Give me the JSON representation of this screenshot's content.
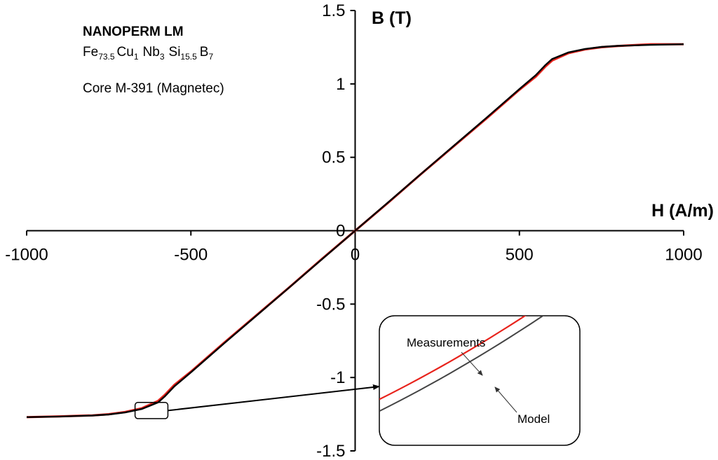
{
  "chart_data": {
    "type": "line",
    "xlabel": "H (A/m)",
    "ylabel": "B (T)",
    "xlim": [
      -1000,
      1000
    ],
    "ylim": [
      -1.5,
      1.5
    ],
    "x_ticks": [
      -1000,
      -500,
      0,
      500,
      1000
    ],
    "y_ticks": [
      -1.5,
      -1,
      -0.5,
      0,
      0.5,
      1,
      1.5
    ],
    "x_tick_labels": [
      "-1000",
      "-500",
      "0",
      "500",
      "1000"
    ],
    "y_tick_labels": [
      "-1.5",
      "-1",
      "-0.5",
      "0",
      "0.5",
      "1",
      "1.5"
    ],
    "grid": false,
    "series": [
      {
        "name": "Measurements",
        "color": "#e8231c",
        "x": [
          -1000,
          -900,
          -800,
          -750,
          -700,
          -650,
          -600,
          -580,
          -550,
          -500,
          -400,
          -300,
          -200,
          -100,
          0,
          100,
          200,
          300,
          400,
          500,
          550,
          580,
          600,
          650,
          700,
          750,
          800,
          900,
          1000
        ],
        "y": [
          -1.27,
          -1.265,
          -1.258,
          -1.25,
          -1.235,
          -1.21,
          -1.16,
          -1.12,
          -1.05,
          -0.96,
          -0.765,
          -0.575,
          -0.385,
          -0.19,
          0,
          0.19,
          0.385,
          0.575,
          0.765,
          0.96,
          1.05,
          1.12,
          1.16,
          1.21,
          1.235,
          1.25,
          1.258,
          1.27,
          1.27
        ]
      },
      {
        "name": "Model",
        "color": "#000000",
        "x": [
          -1000,
          -900,
          -800,
          -750,
          -700,
          -650,
          -600,
          -580,
          -550,
          -500,
          -400,
          -300,
          -200,
          -100,
          0,
          100,
          200,
          300,
          400,
          500,
          550,
          580,
          600,
          650,
          700,
          750,
          800,
          900,
          1000
        ],
        "y": [
          -1.27,
          -1.266,
          -1.259,
          -1.252,
          -1.238,
          -1.215,
          -1.17,
          -1.13,
          -1.06,
          -0.965,
          -0.77,
          -0.578,
          -0.386,
          -0.192,
          0,
          0.192,
          0.386,
          0.578,
          0.77,
          0.965,
          1.06,
          1.13,
          1.17,
          1.215,
          1.238,
          1.252,
          1.259,
          1.266,
          1.27
        ]
      }
    ],
    "annotations": {
      "title": "NANOPERM LM",
      "formula": {
        "fe": "Fe",
        "fe_sub": "73.5",
        "cu": "Cu",
        "cu_sub": "1",
        "nb": "Nb",
        "nb_sub": "3",
        "si": "Si",
        "si_sub": "15.5",
        "b": "B",
        "b_sub": "7"
      },
      "core": "Core M-391 (Magnetec)"
    },
    "inset": {
      "measurement_label": "Measurements",
      "model_label": "Model",
      "zoom_region": {
        "x": [
          -670,
          -570
        ],
        "y": [
          -1.28,
          -1.17
        ]
      }
    }
  }
}
